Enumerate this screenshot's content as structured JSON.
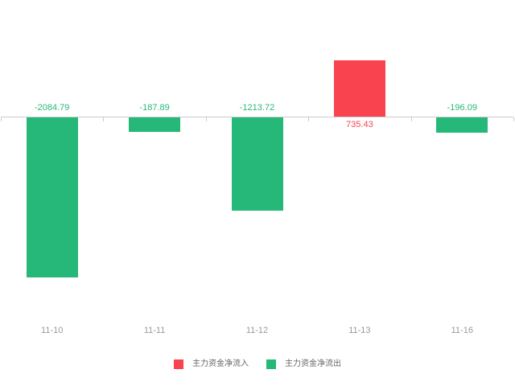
{
  "chart_data": {
    "type": "bar",
    "title": "",
    "categories": [
      "11-10",
      "11-11",
      "11-12",
      "11-13",
      "11-16"
    ],
    "values": [
      -2084.79,
      -187.89,
      -1213.72,
      735.43,
      -196.09
    ],
    "value_labels": [
      "-2084.79",
      "-187.89",
      "-1213.72",
      "735.43",
      "-196.09"
    ],
    "bar_colors": [
      "#26b878",
      "#26b878",
      "#26b878",
      "#f9444f",
      "#26b878"
    ],
    "ylim": [
      -2200,
      800
    ],
    "grid": false,
    "legend_position": "bottom",
    "legend": [
      {
        "label": "主力资金净流入",
        "color": "#f9444f"
      },
      {
        "label": "主力资金净流出",
        "color": "#26b878"
      }
    ],
    "axis": {
      "zero_line_color": "#cccccc",
      "tick_color": "#cccccc",
      "category_label_color": "#999999"
    }
  },
  "colors": {
    "inflow_red": "#f9444f",
    "outflow_green": "#26b878",
    "background": "#ffffff"
  }
}
